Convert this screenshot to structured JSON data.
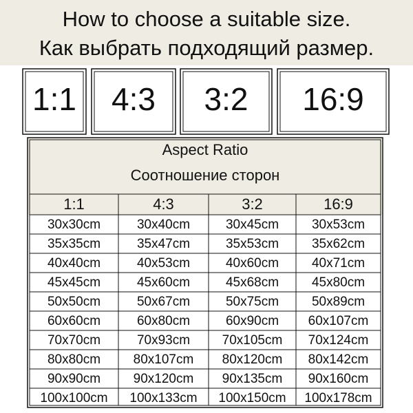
{
  "header": {
    "title": "How to choose a suitable size.",
    "subtitle": "Как выбрать подходящий размер."
  },
  "ratios": [
    "1:1",
    "4:3",
    "3:2",
    "16:9"
  ],
  "table": {
    "title": "Aspect Ratio",
    "subtitle": "Соотношение сторон",
    "columns": [
      "1:1",
      "4:3",
      "3:2",
      "16:9"
    ],
    "rows": [
      [
        "30x30cm",
        "30x40cm",
        "30x45cm",
        "30x53cm"
      ],
      [
        "35x35cm",
        "35x47cm",
        "35x53cm",
        "35x62cm"
      ],
      [
        "40x40cm",
        "40x53cm",
        "40x60cm",
        "40x71cm"
      ],
      [
        "45x45cm",
        "45x60cm",
        "45x68cm",
        "45x80cm"
      ],
      [
        "50x50cm",
        "50x67cm",
        "50x75cm",
        "50x89cm"
      ],
      [
        "60x60cm",
        "60x80cm",
        "60x90cm",
        "60x107cm"
      ],
      [
        "70x70cm",
        "70x93cm",
        "70x105cm",
        "70x124cm"
      ],
      [
        "80x80cm",
        "80x107cm",
        "80x120cm",
        "80x142cm"
      ],
      [
        "90x90cm",
        "90x120cm",
        "90x135cm",
        "90x160cm"
      ],
      [
        "100x100cm",
        "100x133cm",
        "100x150cm",
        "100x178cm"
      ]
    ]
  }
}
